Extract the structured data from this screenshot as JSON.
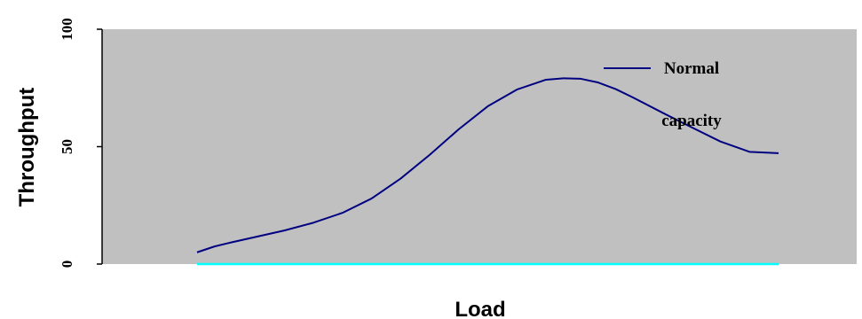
{
  "chart_data": {
    "type": "line",
    "title": "",
    "xlabel": "Load",
    "ylabel": "Throughput",
    "ylim": [
      0,
      100
    ],
    "y_ticks": [
      "0",
      "50",
      "100"
    ],
    "x": [
      0,
      3,
      6,
      10,
      15,
      20,
      25,
      30,
      35,
      40,
      45,
      50,
      55,
      60,
      63,
      66,
      69,
      72,
      75,
      80,
      85,
      90,
      95,
      100
    ],
    "series": [
      {
        "name": "Normal capacity",
        "color": "#000080",
        "values": [
          5,
          7.5,
          9.3,
          11.5,
          14.3,
          17.6,
          21.8,
          27.9,
          36.4,
          46.5,
          57.4,
          67.2,
          74.3,
          78.5,
          79.1,
          78.9,
          77.3,
          74.5,
          70.9,
          64.5,
          58.3,
          52.2,
          47.8,
          47.2
        ]
      },
      {
        "name": "",
        "color": "#00ffff",
        "values": [
          0,
          0,
          0,
          0,
          0,
          0,
          0,
          0,
          0,
          0,
          0,
          0,
          0,
          0,
          0,
          0,
          0,
          0,
          0,
          0,
          0,
          0,
          0,
          0
        ]
      }
    ],
    "plot_background": "#c0c0c0",
    "grid": false,
    "legend": {
      "position": "top-right",
      "lines": [
        "Normal",
        "capacity"
      ]
    }
  }
}
